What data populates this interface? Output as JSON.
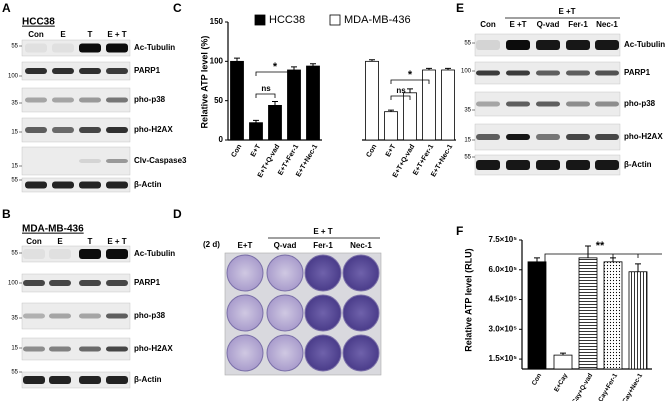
{
  "panels": {
    "A": {
      "label": "A",
      "cell_line": "HCC38",
      "lanes": [
        "Con",
        "E",
        "T",
        "E + T"
      ],
      "markers": [
        "55",
        "100",
        "35",
        "15",
        "15",
        "55"
      ],
      "proteins": [
        "Ac-Tubulin",
        "PARP1",
        "pho-p38",
        "pho-H2AX",
        "Clv-Caspase3",
        "β-Actin"
      ]
    },
    "B": {
      "label": "B",
      "cell_line": "MDA-MB-436",
      "lanes": [
        "Con",
        "E",
        "T",
        "E + T"
      ],
      "markers": [
        "55",
        "100",
        "35",
        "15",
        "55"
      ],
      "proteins": [
        "Ac-Tubulin",
        "PARP1",
        "pho-p38",
        "pho-H2AX",
        "β-Actin"
      ]
    },
    "D": {
      "label": "D",
      "duration": "(2 d)",
      "group": "E + T",
      "columns": [
        "E+T",
        "Q-vad",
        "Fer-1",
        "Nec-1"
      ]
    },
    "E": {
      "label": "E",
      "group": "E +T",
      "lanes": [
        "Con",
        "E +T",
        "Q-vad",
        "Fer-1",
        "Nec-1"
      ],
      "markers": [
        "55",
        "100",
        "35",
        "15",
        "55"
      ],
      "proteins": [
        "Ac-Tubulin",
        "PARP1",
        "pho-p38",
        "pho-H2AX",
        "β-Actin"
      ]
    }
  },
  "chart_data": [
    {
      "type": "bar",
      "panel": "C",
      "y_label": "Relative ATP level (%)",
      "categories": [
        "Con",
        "E+T",
        "E+T+Q-vad",
        "E+T+Fer-1",
        "E+T+Nec-1"
      ],
      "series": [
        {
          "name": "HCC38",
          "color": "#000000",
          "values": [
            100,
            22,
            44,
            89,
            94
          ],
          "errors": [
            4,
            3,
            5,
            4,
            3
          ]
        },
        {
          "name": "MDA-MB-436",
          "color": "#ffffff",
          "values": [
            100,
            36,
            60,
            89,
            89
          ],
          "errors": [
            2,
            2,
            5,
            2,
            2
          ]
        }
      ],
      "ylim": [
        0,
        150
      ],
      "yticks": [
        0,
        50,
        100,
        150
      ],
      "annotations": [
        "*",
        "ns",
        "*",
        "ns"
      ]
    },
    {
      "type": "bar",
      "panel": "F",
      "y_label": "Relative ATP level (RLU)",
      "categories": [
        "Con",
        "E+Cay",
        "E+Cay+Q-vad",
        "E+Cay+Fer-1",
        "E+Cay+Nec-1"
      ],
      "values": [
        640000,
        170000,
        660000,
        640000,
        590000
      ],
      "errors": [
        20000,
        10000,
        60000,
        20000,
        40000
      ],
      "patterns": [
        "solid",
        "none",
        "hlines",
        "dots",
        "vlines"
      ],
      "ylim": [
        100000,
        750000
      ],
      "yticks": [
        {
          "value": 150000,
          "label": "1.5×10⁵"
        },
        {
          "value": 300000,
          "label": "3.0×10⁵"
        },
        {
          "value": 450000,
          "label": "4.5×10⁵"
        },
        {
          "value": 600000,
          "label": "6.0×10⁵"
        },
        {
          "value": 750000,
          "label": "7.5×10⁵"
        }
      ],
      "annotations": [
        "**"
      ]
    }
  ]
}
